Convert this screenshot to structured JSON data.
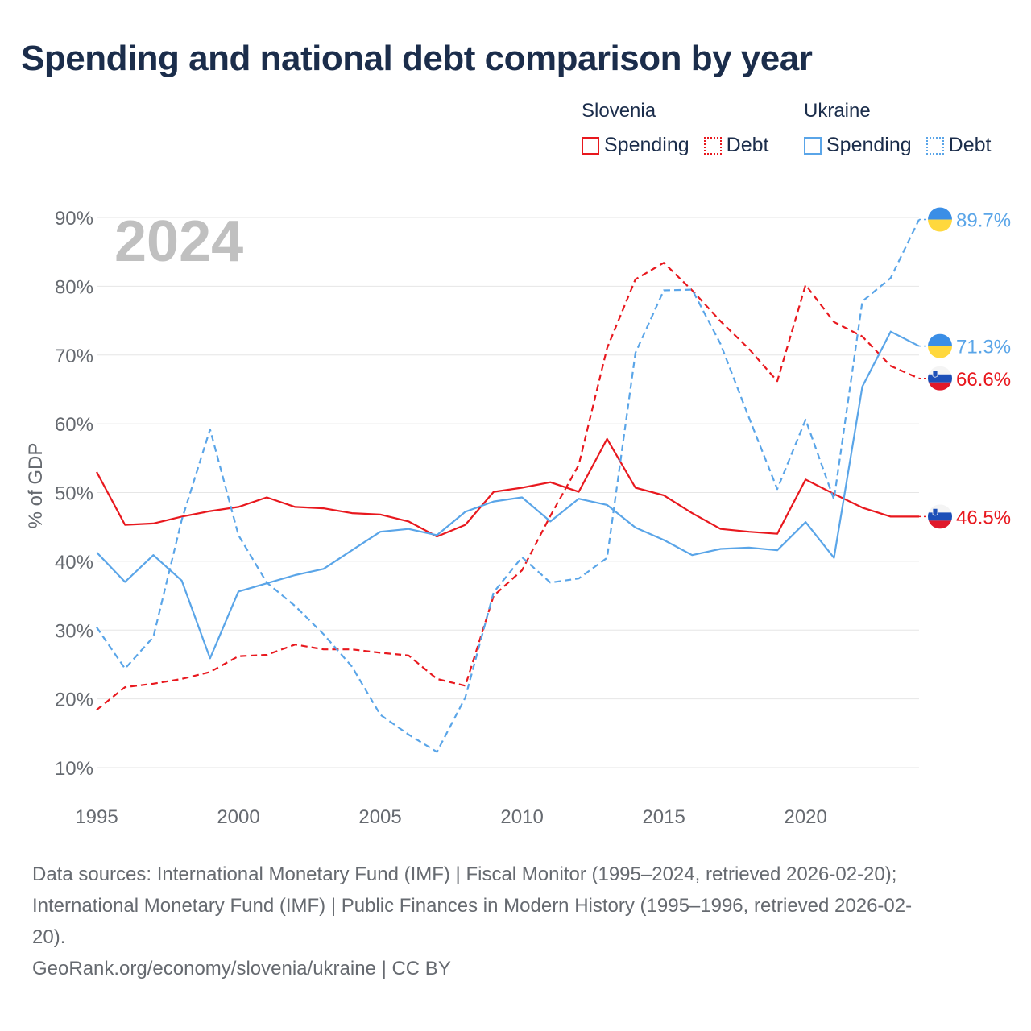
{
  "title": "Spending and national debt comparison by year",
  "legend": {
    "groups": [
      {
        "country": "Slovenia",
        "items": [
          "Spending",
          "Debt"
        ]
      },
      {
        "country": "Ukraine",
        "items": [
          "Spending",
          "Debt"
        ]
      }
    ]
  },
  "colors": {
    "slovenia": "#e8181e",
    "ukraine": "#5aa5e8",
    "grid": "#e6e6e6",
    "axis_text": "#666a70",
    "year_watermark": "#c0c0c0"
  },
  "chart_data": {
    "type": "line",
    "ylabel": "% of GDP",
    "xlabel": "",
    "year_label": "2024",
    "ylim": [
      10,
      90
    ],
    "xlim": [
      1995,
      2024
    ],
    "y_ticks": [
      10,
      20,
      30,
      40,
      50,
      60,
      70,
      80,
      90
    ],
    "y_tick_labels": [
      "10%",
      "20%",
      "30%",
      "40%",
      "50%",
      "60%",
      "70%",
      "80%",
      "90%"
    ],
    "x_ticks": [
      1995,
      2000,
      2005,
      2010,
      2015,
      2020
    ],
    "x_tick_labels": [
      "1995",
      "2000",
      "2005",
      "2010",
      "2015",
      "2020"
    ],
    "x": [
      1995,
      1996,
      1997,
      1998,
      1999,
      2000,
      2001,
      2002,
      2003,
      2004,
      2005,
      2006,
      2007,
      2008,
      2009,
      2010,
      2011,
      2012,
      2013,
      2014,
      2015,
      2016,
      2017,
      2018,
      2019,
      2020,
      2021,
      2022,
      2023,
      2024
    ],
    "series": [
      {
        "name": "Slovenia Spending",
        "country": "slovenia",
        "style": "solid",
        "values": [
          53.0,
          45.3,
          45.5,
          46.5,
          47.3,
          47.9,
          49.3,
          47.9,
          47.7,
          47.0,
          46.8,
          45.8,
          43.6,
          45.3,
          50.1,
          50.7,
          51.5,
          50.1,
          57.8,
          50.7,
          49.6,
          47.0,
          44.7,
          44.3,
          44.0,
          51.9,
          49.8,
          47.8,
          46.5,
          46.5
        ],
        "end_label": "46.5%"
      },
      {
        "name": "Slovenia Debt",
        "country": "slovenia",
        "style": "dashed",
        "values": [
          18.4,
          21.7,
          22.2,
          22.9,
          23.9,
          26.2,
          26.4,
          27.9,
          27.2,
          27.2,
          26.7,
          26.3,
          22.9,
          21.9,
          35.0,
          38.7,
          46.6,
          54.0,
          71.0,
          81.0,
          83.4,
          79.4,
          74.9,
          70.9,
          66.2,
          80.2,
          74.8,
          72.7,
          68.4,
          66.6
        ],
        "end_label": "66.6%"
      },
      {
        "name": "Ukraine Spending",
        "country": "ukraine",
        "style": "solid",
        "values": [
          41.3,
          37.0,
          40.9,
          37.2,
          25.9,
          35.6,
          36.8,
          38.0,
          38.9,
          41.6,
          44.3,
          44.7,
          43.8,
          47.2,
          48.7,
          49.3,
          45.8,
          49.1,
          48.2,
          44.9,
          43.1,
          40.9,
          41.8,
          42.0,
          41.6,
          45.7,
          40.5,
          65.4,
          73.4,
          71.3
        ],
        "end_label": "71.3%"
      },
      {
        "name": "Ukraine Debt",
        "country": "ukraine",
        "style": "dashed",
        "values": [
          30.4,
          24.4,
          29.0,
          46.0,
          59.2,
          43.8,
          36.9,
          33.5,
          29.4,
          24.7,
          17.7,
          14.8,
          12.3,
          20.2,
          35.5,
          40.6,
          36.9,
          37.5,
          40.5,
          70.3,
          79.4,
          79.5,
          71.6,
          60.9,
          50.5,
          60.6,
          49.0,
          77.8,
          81.2,
          89.7
        ],
        "end_label": "89.7%"
      }
    ]
  },
  "footer": {
    "sources_line1": "Data sources: International Monetary Fund (IMF) | Fiscal Monitor (1995–2024, retrieved 2026-02-20);",
    "sources_line2": "International Monetary Fund (IMF) | Public Finances in Modern History (1995–1996, retrieved 2026-02-",
    "sources_line3": "20).",
    "credit": "GeoRank.org/economy/slovenia/ukraine | CC BY"
  }
}
